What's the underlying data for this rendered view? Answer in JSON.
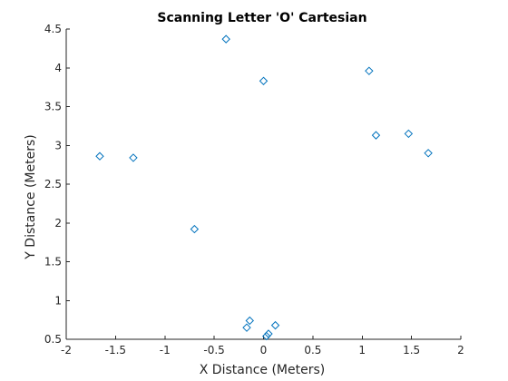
{
  "colors": {
    "marker": "#0072bd",
    "axis": "#262626",
    "background": "#ffffff"
  },
  "chart_data": {
    "type": "scatter",
    "title": "Scanning Letter 'O' Cartesian",
    "xlabel": "X Distance (Meters)",
    "ylabel": "Y Distance (Meters)",
    "xlim": [
      -2,
      2
    ],
    "ylim": [
      0.5,
      4.5
    ],
    "x_ticks": [
      -2,
      -1.5,
      -1,
      -0.5,
      0,
      0.5,
      1,
      1.5,
      2
    ],
    "x_tick_labels": [
      "-2",
      "-1.5",
      "-1",
      "-0.5",
      "0",
      "0.5",
      "1",
      "1.5",
      "2"
    ],
    "y_ticks": [
      0.5,
      1,
      1.5,
      2,
      2.5,
      3,
      3.5,
      4,
      4.5
    ],
    "y_tick_labels": [
      "0.5",
      "1",
      "1.5",
      "2",
      "2.5",
      "3",
      "3.5",
      "4",
      "4.5"
    ],
    "grid": false,
    "marker": "diamond",
    "points": [
      {
        "x": -1.66,
        "y": 2.86
      },
      {
        "x": -1.32,
        "y": 2.84
      },
      {
        "x": -0.7,
        "y": 1.92
      },
      {
        "x": -0.38,
        "y": 4.37
      },
      {
        "x": 0.0,
        "y": 3.83
      },
      {
        "x": 1.07,
        "y": 3.96
      },
      {
        "x": 1.14,
        "y": 3.13
      },
      {
        "x": 1.47,
        "y": 3.15
      },
      {
        "x": 1.67,
        "y": 2.9
      },
      {
        "x": -0.17,
        "y": 0.65
      },
      {
        "x": -0.14,
        "y": 0.74
      },
      {
        "x": 0.12,
        "y": 0.68
      },
      {
        "x": 0.05,
        "y": 0.57
      },
      {
        "x": 0.03,
        "y": 0.54
      }
    ]
  }
}
